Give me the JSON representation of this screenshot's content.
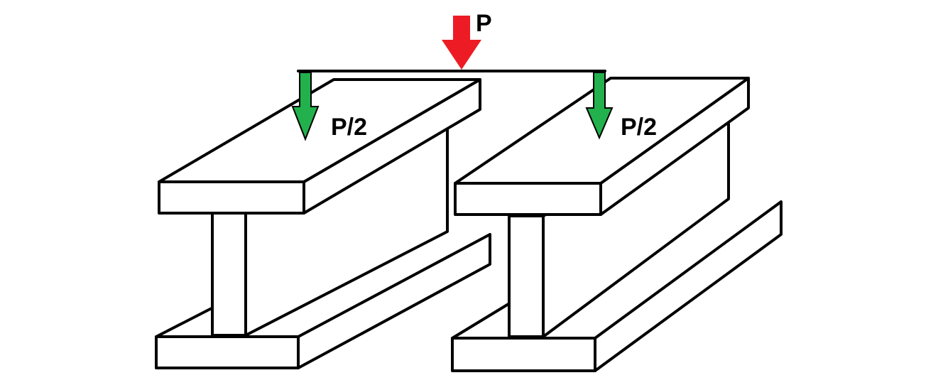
{
  "labels": {
    "load_total": "P",
    "load_left": "P/2",
    "load_right": "P/2"
  },
  "colors": {
    "total_load_arrow": "#ed1c24",
    "split_load_arrow": "#22b14c",
    "beam_outline": "#000000",
    "background": "#ffffff"
  }
}
